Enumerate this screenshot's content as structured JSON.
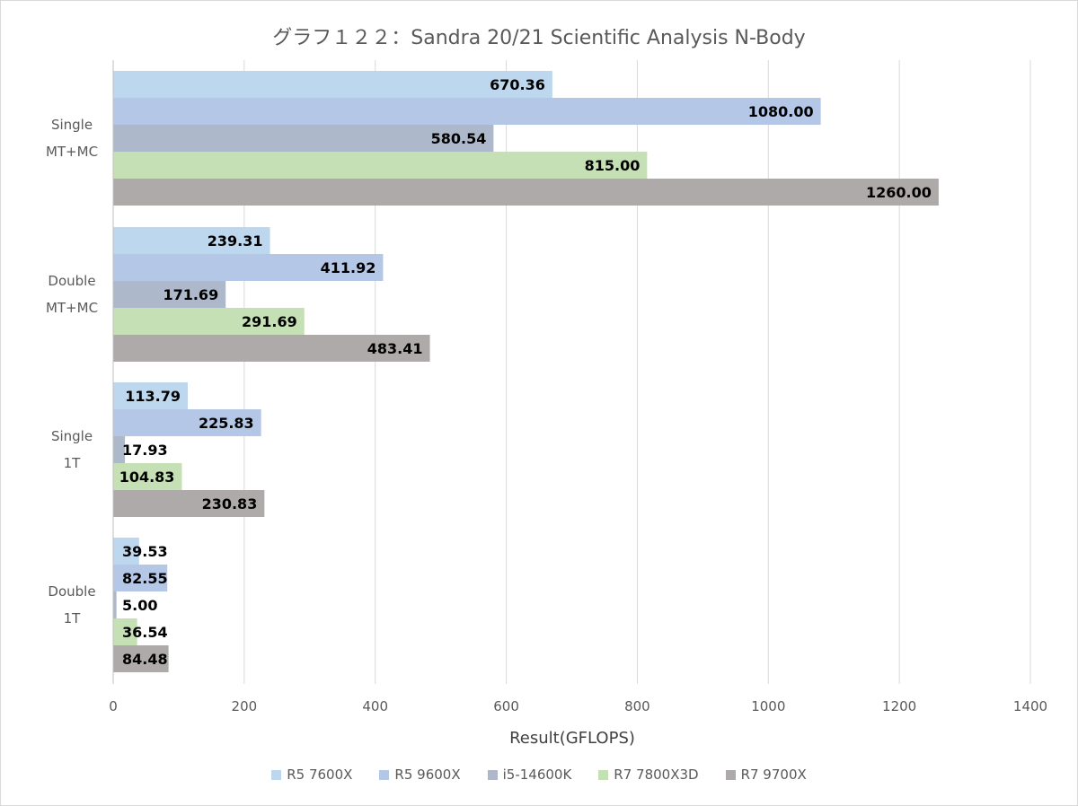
{
  "chart_data": {
    "type": "bar",
    "orientation": "horizontal",
    "title": "グラフ１２２：Sandra 20/21 Scientific Analysis N-Body",
    "xlabel": "Result(GFLOPS)",
    "ylabel": "",
    "xlim": [
      0,
      1400
    ],
    "xticks": [
      0,
      200,
      400,
      600,
      800,
      1000,
      1200,
      1400
    ],
    "grid": true,
    "legend_position": "bottom",
    "categories": [
      [
        "Single",
        "MT+MC"
      ],
      [
        "Double",
        "MT+MC"
      ],
      [
        "Single",
        "1T"
      ],
      [
        "Double",
        "1T"
      ]
    ],
    "series": [
      {
        "name": "R5 7600X",
        "color": "#bdd7ee",
        "values": [
          670.36,
          239.31,
          113.79,
          39.53
        ],
        "labels": [
          "670.36",
          "239.31",
          "113.79",
          "39.53"
        ]
      },
      {
        "name": "R5 9600X",
        "color": "#b4c7e7",
        "values": [
          1080.0,
          411.92,
          225.83,
          82.55
        ],
        "labels": [
          "1080.00",
          "411.92",
          "225.83",
          "82.55"
        ]
      },
      {
        "name": "i5-14600K",
        "color": "#adb9ca",
        "values": [
          580.54,
          171.69,
          17.93,
          5.0
        ],
        "labels": [
          "580.54",
          "171.69",
          "17.93",
          "5.00"
        ]
      },
      {
        "name": "R7 7800X3D",
        "color": "#c5e0b4",
        "values": [
          815.0,
          291.69,
          104.83,
          36.54
        ],
        "labels": [
          "815.00",
          "291.69",
          "104.83",
          "36.54"
        ]
      },
      {
        "name": "R7 9700X",
        "color": "#aeaaaa",
        "values": [
          1260.0,
          483.41,
          230.83,
          84.48
        ],
        "labels": [
          "1260.00",
          "483.41",
          "230.83",
          "84.48"
        ]
      }
    ]
  }
}
